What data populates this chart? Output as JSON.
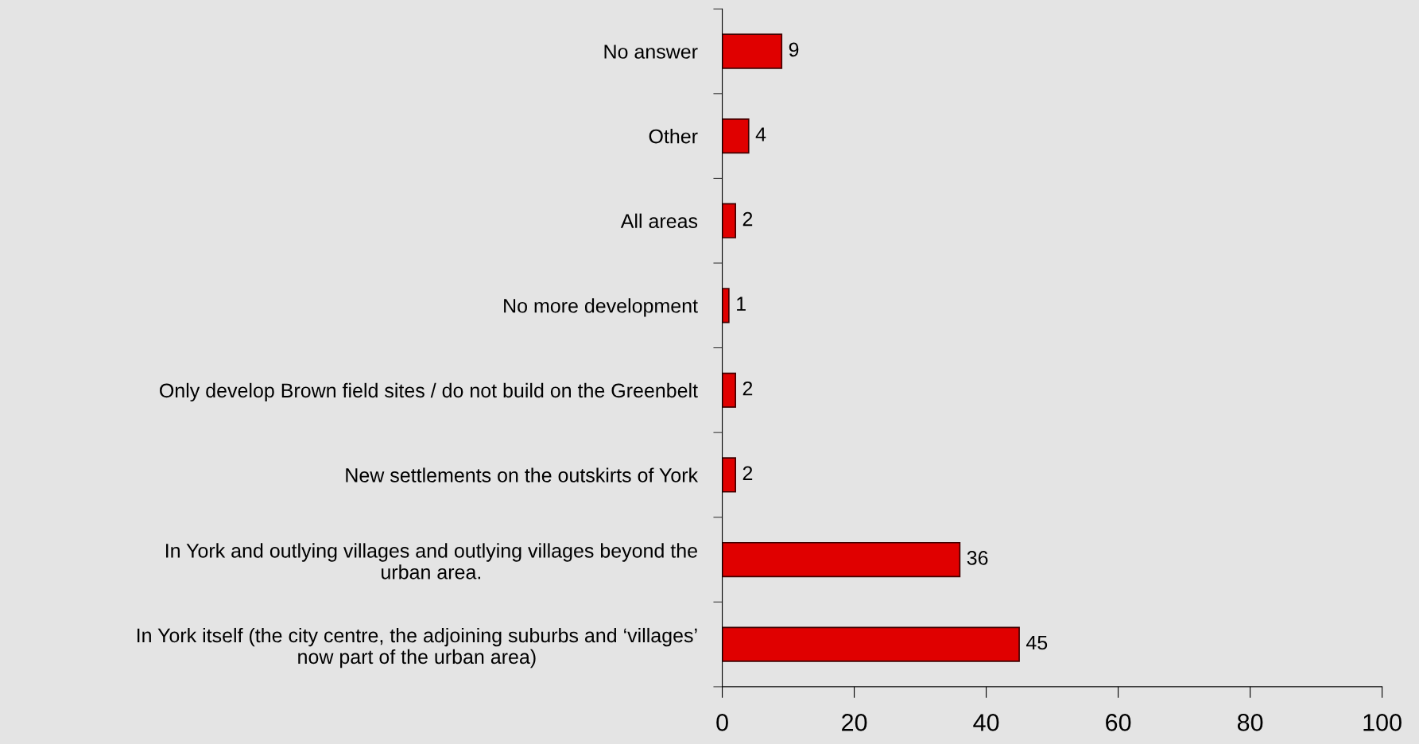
{
  "chart_data": {
    "type": "bar",
    "orientation": "horizontal",
    "categories": [
      "No answer",
      "Other",
      "All areas",
      "No more development",
      "Only develop Brown field sites / do not build on the Greenbelt",
      "New settlements on the outskirts of York",
      "In York and outlying villages and outlying villages beyond the\nurban area.",
      "In York itself (the city centre, the adjoining suburbs and ‘villages’\nnow part of the urban area)"
    ],
    "values": [
      9,
      4,
      2,
      1,
      2,
      2,
      36,
      45
    ],
    "color": "#e00000",
    "xlim": [
      0,
      100
    ],
    "xticks": [
      0,
      20,
      40,
      60,
      80,
      100
    ],
    "data_labels": true,
    "grid": false,
    "legend": false
  }
}
